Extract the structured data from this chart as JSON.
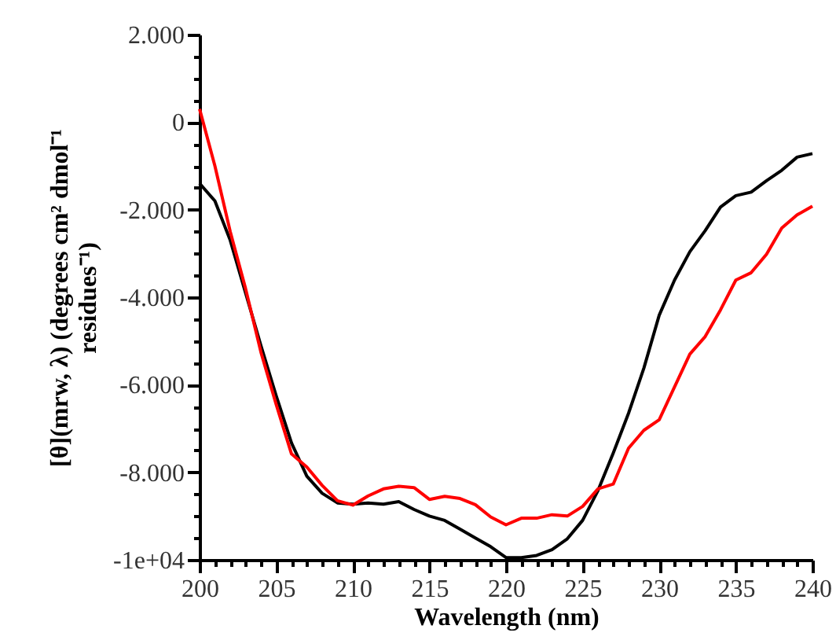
{
  "chart_data": {
    "type": "line",
    "xlabel": "Wavelength (nm)",
    "ylabel": "[θ](mrw, λ) (degrees cm² dmol⁻¹ residues⁻¹)",
    "x": [
      200,
      201,
      202,
      203,
      204,
      205,
      206,
      207,
      208,
      209,
      210,
      211,
      212,
      213,
      214,
      215,
      216,
      217,
      218,
      219,
      220,
      221,
      222,
      223,
      224,
      225,
      226,
      227,
      228,
      229,
      230,
      231,
      232,
      233,
      234,
      235,
      236,
      237,
      238,
      239,
      240
    ],
    "series": [
      {
        "color": "#000000",
        "values": [
          -1400,
          -1800,
          -2700,
          -3900,
          -5100,
          -6250,
          -7330,
          -8090,
          -8480,
          -8700,
          -8730,
          -8700,
          -8730,
          -8670,
          -8850,
          -9000,
          -9100,
          -9300,
          -9500,
          -9700,
          -9950,
          -9950,
          -9900,
          -9770,
          -9520,
          -9100,
          -8420,
          -7560,
          -6650,
          -5620,
          -4410,
          -3610,
          -2960,
          -2480,
          -1940,
          -1680,
          -1600,
          -1340,
          -1100,
          -800,
          -720
        ]
      },
      {
        "color": "#ff0000",
        "values": [
          300,
          -1000,
          -2500,
          -3800,
          -5250,
          -6450,
          -7580,
          -7880,
          -8300,
          -8650,
          -8750,
          -8540,
          -8380,
          -8320,
          -8350,
          -8620,
          -8550,
          -8600,
          -8740,
          -9020,
          -9200,
          -9050,
          -9050,
          -8970,
          -9000,
          -8780,
          -8380,
          -8270,
          -7450,
          -7040,
          -6800,
          -6050,
          -5300,
          -4900,
          -4290,
          -3610,
          -3440,
          -3020,
          -2420,
          -2120,
          -1920
        ]
      }
    ],
    "xlim": [
      200,
      240
    ],
    "xticks": [
      200,
      {
        "value": 201,
        "label": null
      },
      {
        "value": 202,
        "label": null
      },
      {
        "value": 203,
        "label": null
      },
      {
        "value": 204,
        "label": null
      },
      205,
      {
        "value": 206,
        "label": null
      },
      {
        "value": 207,
        "label": null
      },
      {
        "value": 208,
        "label": null
      },
      {
        "value": 209,
        "label": null
      },
      210,
      {
        "value": 211,
        "label": null
      },
      {
        "value": 212,
        "label": null
      },
      {
        "value": 213,
        "label": null
      },
      {
        "value": 214,
        "label": null
      },
      215,
      {
        "value": 216,
        "label": null
      },
      {
        "value": 217,
        "label": null
      },
      {
        "value": 218,
        "label": null
      },
      {
        "value": 219,
        "label": null
      },
      220,
      {
        "value": 221,
        "label": null
      },
      {
        "value": 222,
        "label": null
      },
      {
        "value": 223,
        "label": null
      },
      {
        "value": 224,
        "label": null
      },
      225,
      {
        "value": 226,
        "label": null
      },
      {
        "value": 227,
        "label": null
      },
      {
        "value": 228,
        "label": null
      },
      {
        "value": 229,
        "label": null
      },
      230,
      {
        "value": 231,
        "label": null
      },
      {
        "value": 232,
        "label": null
      },
      {
        "value": 233,
        "label": null
      },
      {
        "value": 234,
        "label": null
      },
      235,
      {
        "value": 236,
        "label": null
      },
      {
        "value": 237,
        "label": null
      },
      {
        "value": 238,
        "label": null
      },
      {
        "value": 239,
        "label": null
      },
      240
    ],
    "ylim": [
      -10000,
      2000
    ],
    "yticks": [
      {
        "value": -10000,
        "label": "-1e+04"
      },
      {
        "value": -9500,
        "label": null
      },
      {
        "value": -9000,
        "label": null
      },
      {
        "value": -8500,
        "label": null
      },
      {
        "value": -8000,
        "label": "-8.000"
      },
      {
        "value": -7500,
        "label": null
      },
      {
        "value": -7000,
        "label": null
      },
      {
        "value": -6500,
        "label": null
      },
      {
        "value": -6000,
        "label": "-6.000"
      },
      {
        "value": -5500,
        "label": null
      },
      {
        "value": -5000,
        "label": null
      },
      {
        "value": -4500,
        "label": null
      },
      {
        "value": -4000,
        "label": "-4.000"
      },
      {
        "value": -3500,
        "label": null
      },
      {
        "value": -3000,
        "label": null
      },
      {
        "value": -2500,
        "label": null
      },
      {
        "value": -2000,
        "label": "-2.000"
      },
      {
        "value": -1500,
        "label": null
      },
      {
        "value": -1000,
        "label": null
      },
      {
        "value": -500,
        "label": null
      },
      0,
      {
        "value": 500,
        "label": null
      },
      {
        "value": 1000,
        "label": null
      },
      {
        "value": 1500,
        "label": null
      },
      {
        "value": 2000,
        "label": "2.000"
      }
    ],
    "line_style": "solid"
  }
}
